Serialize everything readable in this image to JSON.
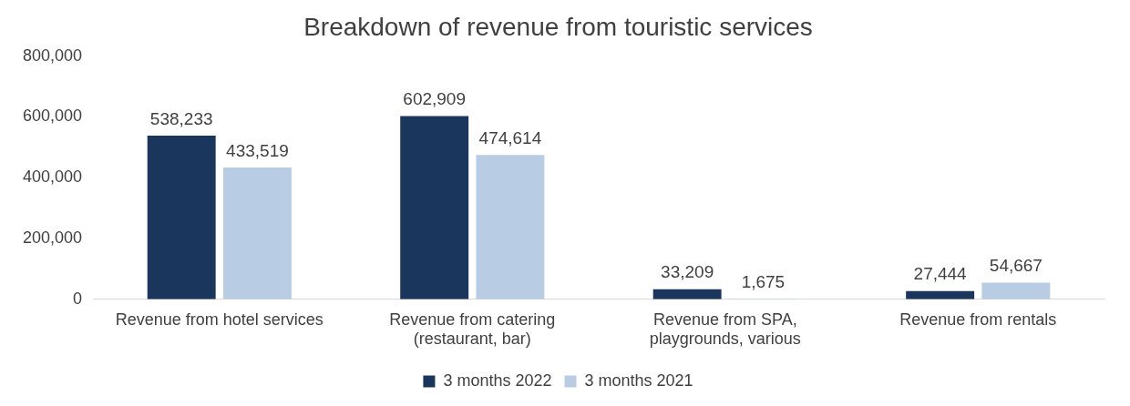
{
  "chart_data": {
    "type": "bar",
    "title": "Breakdown of revenue from touristic services",
    "categories": [
      "Revenue from hotel services",
      "Revenue from catering\n(restaurant, bar)",
      "Revenue from SPA,\nplaygrounds, various",
      "Revenue from rentals"
    ],
    "series": [
      {
        "name": "3 months 2022",
        "color": "#1b365d",
        "values": [
          538233,
          602909,
          33209,
          27444
        ],
        "value_labels": [
          "538,233",
          "602,909",
          "33,209",
          "27,444"
        ]
      },
      {
        "name": "3 months 2021",
        "color": "#b8cce4",
        "values": [
          433519,
          474614,
          1675,
          54667
        ],
        "value_labels": [
          "433,519",
          "474,614",
          "1,675",
          "54,667"
        ]
      }
    ],
    "ylim": [
      0,
      800000
    ],
    "yticks": [
      0,
      {
        "value": 200000,
        "label": "200,000"
      },
      {
        "value": 400000,
        "label": "400,000"
      },
      {
        "value": 600000,
        "label": "600,000"
      },
      {
        "value": 800000,
        "label": "800,000"
      }
    ],
    "grid": false,
    "legend": "bottom"
  }
}
